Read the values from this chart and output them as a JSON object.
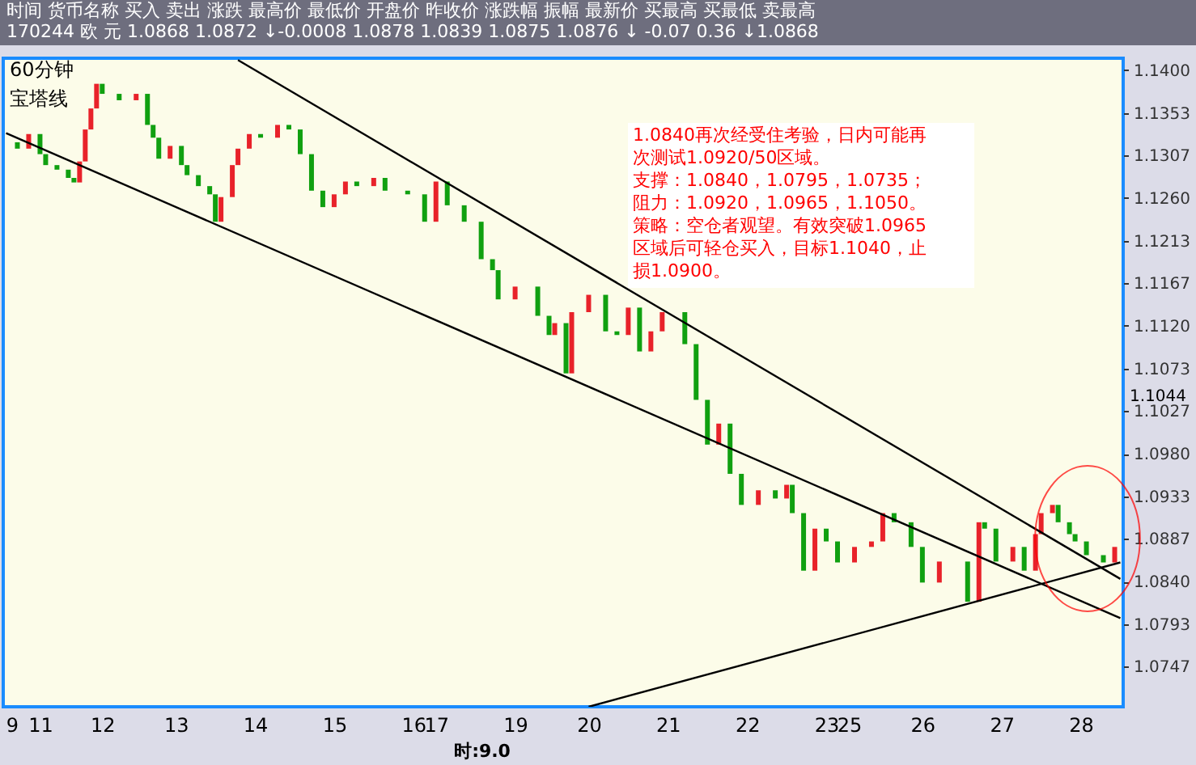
{
  "chart_data": {
    "type": "bar",
    "title": "60分钟",
    "subtitle": "宝塔线",
    "annotations": [
      "时间  货币名称  买入  卖出  涨跌  最高价  最低价  开盘价  昨收价  涨跌幅  振幅  最新价  买最高  买最低  卖最高",
      "170244  欧  元  1.0868  1.0872  ↓-0.0008  1.0878  1.0839  1.0875  1.0876  ↓ -0.07  0.36  ↓1.0868",
      "1.0840再次经受住考验，日内可能再",
      "次测试1.0920/50区域。",
      "支撑：1.0840，1.0795，1.0735；",
      "阻力：1.0920，1.0965，1.1050。",
      "策略：空仓者观望。有效突破1.0965",
      "区域后可轻仓买入，目标1.1040，止",
      "损1.0900。",
      "时:9.0",
      "1.1044"
    ],
    "categories": [
      null,
      "9",
      null,
      null,
      null,
      null,
      "11",
      null,
      null,
      null,
      null,
      null,
      null,
      null,
      null,
      null,
      null,
      "12",
      null,
      null,
      null,
      null,
      null,
      null,
      null,
      null,
      null,
      null,
      null,
      null,
      "13",
      null,
      null,
      null,
      null,
      null,
      null,
      null,
      null,
      null,
      null,
      null,
      null,
      null,
      "14",
      null,
      null,
      null,
      null,
      null,
      null,
      null,
      null,
      null,
      null,
      null,
      null,
      null,
      "15",
      null,
      null,
      null,
      null,
      null,
      null,
      null,
      null,
      null,
      null,
      null,
      null,
      null,
      "16",
      null,
      null,
      null,
      "17",
      null,
      null,
      null,
      null,
      null,
      null,
      null,
      null,
      null,
      null,
      null,
      null,
      null,
      "19",
      null,
      null,
      null,
      null,
      null,
      null,
      null,
      null,
      null,
      null,
      null,
      null,
      "20",
      null,
      null,
      null,
      null,
      null,
      null,
      null,
      null,
      null,
      null,
      null,
      null,
      null,
      "21",
      null,
      null,
      null,
      null,
      null,
      null,
      null,
      null,
      null,
      null,
      null,
      null,
      null,
      "22",
      null,
      null,
      null,
      null,
      null,
      null,
      null,
      null,
      null,
      null,
      null,
      null,
      null,
      "23",
      null,
      null,
      null,
      "25",
      null,
      null,
      null,
      null,
      null,
      null,
      null,
      null,
      null,
      null,
      null,
      null,
      "26",
      null,
      null,
      null,
      null,
      null,
      null,
      null,
      null,
      null,
      null,
      null,
      null,
      null,
      "27",
      null,
      null,
      null,
      null,
      null,
      null,
      null,
      null,
      null,
      null,
      null,
      null,
      null,
      "28",
      null,
      null,
      null,
      null,
      null,
      null,
      null
    ],
    "ylim": [
      1.0703,
      1.1413
    ],
    "yticks": [
      {
        "value": 1.14,
        "label": "1.1400"
      },
      {
        "value": 1.1353,
        "label": "1.1353"
      },
      {
        "value": 1.1307,
        "label": "1.1307"
      },
      {
        "value": 1.126,
        "label": "1.1260"
      },
      {
        "value": 1.1213,
        "label": "1.1213"
      },
      {
        "value": 1.1167,
        "label": "1.1167"
      },
      {
        "value": 1.112,
        "label": "1.1120"
      },
      {
        "value": 1.1073,
        "label": "1.1073"
      },
      {
        "value": 1.1027,
        "label": "1.1027"
      },
      {
        "value": 1.098,
        "label": "1.0980"
      },
      {
        "value": 1.0933,
        "label": "1.0933"
      },
      {
        "value": 1.0887,
        "label": "1.0887"
      },
      {
        "value": 1.084,
        "label": "1.0840"
      },
      {
        "value": 1.0793,
        "label": "1.0793"
      },
      {
        "value": 1.0747,
        "label": "1.0747"
      }
    ],
    "series": [
      {
        "values": [
          null,
          null,
          -0.0007,
          null,
          0.0016,
          null,
          -0.0022,
          -0.0012,
          null,
          -0.0005,
          null,
          -0.0009,
          -0.0005,
          0.0023,
          0.0035,
          0.0023,
          0.0027,
          -0.0011,
          null,
          null,
          -0.0007,
          null,
          null,
          0.0007,
          null,
          -0.0034,
          -0.0014,
          -0.0023,
          null,
          0.0014,
          null,
          -0.0021,
          -0.0011,
          null,
          -0.0012,
          null,
          -0.0009,
          -0.003,
          0.0027,
          null,
          0.0035,
          0.0018,
          null,
          0.0016,
          null,
          -0.0004,
          null,
          null,
          0.0014,
          null,
          -0.0005,
          null,
          -0.0027,
          null,
          -0.004,
          null,
          -0.0018,
          null,
          0.0014,
          null,
          0.0014,
          null,
          -0.0005,
          null,
          null,
          0.0009,
          null,
          -0.0014,
          null,
          null,
          null,
          -0.0004,
          null,
          null,
          -0.003,
          null,
          0.0044,
          null,
          -0.0026,
          null,
          null,
          -0.0018,
          null,
          null,
          -0.0041,
          null,
          -0.0012,
          -0.0032,
          null,
          null,
          0.0014,
          null,
          null,
          null,
          -0.0032,
          null,
          -0.0021,
          0.0013,
          null,
          -0.0055,
          0.0067,
          null,
          null,
          0.0019,
          null,
          null,
          -0.004,
          null,
          -0.0004,
          null,
          0.003,
          null,
          -0.0048,
          null,
          0.0022,
          null,
          0.0021,
          null,
          null,
          null,
          -0.0035,
          null,
          -0.0061,
          null,
          -0.0049,
          null,
          0.0023,
          null,
          -0.0055,
          null,
          -0.0034,
          null,
          null,
          0.0016,
          null,
          null,
          -0.0009,
          null,
          0.0015,
          -0.0031,
          null,
          -0.0063,
          null,
          0.0046,
          null,
          -0.0014,
          null,
          -0.0023,
          null,
          null,
          0.0017,
          null,
          null,
          0.0006,
          null,
          0.0031,
          null,
          -0.001,
          null,
          null,
          -0.0027,
          null,
          -0.0039,
          null,
          null,
          0.0023,
          null,
          null,
          null,
          null,
          -0.0044,
          null,
          0.0087,
          -0.0007,
          null,
          -0.0036,
          null,
          null,
          0.0016,
          null,
          -0.0026,
          null,
          0.004,
          0.0023,
          null,
          0.0009,
          -0.0019,
          null,
          -0.0013,
          -0.0008,
          null,
          -0.0015,
          null,
          null,
          -0.0008,
          null,
          0.0017,
          null
        ],
        "base": [
          null,
          null,
          1.1321,
          null,
          1.1314,
          null,
          1.133,
          1.1308,
          null,
          1.1296,
          null,
          1.1291,
          1.1282,
          1.1277,
          1.13,
          1.1335,
          1.1358,
          1.1385,
          null,
          null,
          1.1374,
          null,
          null,
          1.1367,
          null,
          1.1374,
          1.134,
          1.1326,
          null,
          1.1303,
          null,
          1.1317,
          1.1296,
          null,
          1.1285,
          null,
          1.1273,
          1.1264,
          1.1234,
          null,
          1.1261,
          1.1296,
          null,
          1.1314,
          null,
          1.133,
          null,
          null,
          1.1326,
          null,
          1.134,
          null,
          1.1335,
          null,
          1.1308,
          null,
          1.1268,
          null,
          1.125,
          null,
          1.1264,
          null,
          1.1278,
          null,
          null,
          1.1273,
          null,
          1.1282,
          null,
          null,
          null,
          1.1268,
          null,
          null,
          1.1264,
          null,
          1.1234,
          null,
          1.1278,
          null,
          null,
          1.1252,
          null,
          null,
          1.1234,
          null,
          1.1193,
          1.1181,
          null,
          null,
          1.1149,
          null,
          null,
          null,
          1.1163,
          null,
          1.1131,
          1.111,
          null,
          1.1123,
          1.1068,
          null,
          null,
          1.1135,
          null,
          null,
          1.1154,
          null,
          1.1114,
          null,
          1.111,
          null,
          1.114,
          null,
          1.1092,
          null,
          1.1114,
          null,
          null,
          null,
          1.1135,
          null,
          1.11,
          null,
          1.1039,
          null,
          1.099,
          null,
          1.1013,
          null,
          1.0958,
          null,
          null,
          1.0924,
          null,
          null,
          1.094,
          null,
          1.0931,
          1.0946,
          null,
          1.0915,
          null,
          1.0852,
          null,
          1.0898,
          null,
          1.0884,
          null,
          null,
          1.0861,
          null,
          null,
          1.0878,
          null,
          1.0884,
          null,
          1.0915,
          null,
          null,
          1.0905,
          null,
          1.0878,
          null,
          null,
          1.0839,
          null,
          null,
          null,
          null,
          1.0862,
          null,
          1.0818,
          1.0905,
          null,
          1.0898,
          null,
          null,
          1.0862,
          null,
          1.0878,
          null,
          1.0852,
          1.0892,
          null,
          1.0915,
          1.0924,
          null,
          1.0905,
          1.0892,
          null,
          1.0884,
          null,
          null,
          1.0869,
          null,
          1.0861,
          null
        ],
        "colors": [
          null,
          null,
          "#10a010",
          null,
          "#e8222a",
          null,
          "#10a010",
          "#10a010",
          null,
          "#10a010",
          null,
          "#10a010",
          "#10a010",
          "#e8222a",
          "#e8222a",
          "#e8222a",
          "#e8222a",
          "#10a010",
          null,
          null,
          "#10a010",
          null,
          null,
          "#e8222a",
          null,
          "#10a010",
          "#10a010",
          "#10a010",
          null,
          "#e8222a",
          null,
          "#10a010",
          "#10a010",
          null,
          "#10a010",
          null,
          "#10a010",
          "#10a010",
          "#e8222a",
          null,
          "#e8222a",
          "#e8222a",
          null,
          "#e8222a",
          null,
          "#10a010",
          null,
          null,
          "#e8222a",
          null,
          "#10a010",
          null,
          "#10a010",
          null,
          "#10a010",
          null,
          "#10a010",
          null,
          "#e8222a",
          null,
          "#e8222a",
          null,
          "#10a010",
          null,
          null,
          "#e8222a",
          null,
          "#10a010",
          null,
          null,
          null,
          "#10a010",
          null,
          null,
          "#10a010",
          null,
          "#e8222a",
          null,
          "#10a010",
          null,
          null,
          "#10a010",
          null,
          null,
          "#10a010",
          null,
          "#10a010",
          "#10a010",
          null,
          null,
          "#e8222a",
          null,
          null,
          null,
          "#10a010",
          null,
          "#10a010",
          "#e8222a",
          null,
          "#10a010",
          "#e8222a",
          null,
          null,
          "#e8222a",
          null,
          null,
          "#10a010",
          null,
          "#10a010",
          null,
          "#e8222a",
          null,
          "#10a010",
          null,
          "#e8222a",
          null,
          "#e8222a",
          null,
          null,
          null,
          "#10a010",
          null,
          "#10a010",
          null,
          "#10a010",
          null,
          "#e8222a",
          null,
          "#10a010",
          null,
          "#10a010",
          null,
          null,
          "#e8222a",
          null,
          null,
          "#10a010",
          null,
          "#e8222a",
          "#10a010",
          null,
          "#10a010",
          null,
          "#e8222a",
          null,
          "#10a010",
          null,
          "#10a010",
          null,
          null,
          "#e8222a",
          null,
          null,
          "#e8222a",
          null,
          "#e8222a",
          null,
          "#10a010",
          null,
          null,
          "#10a010",
          null,
          "#10a010",
          null,
          null,
          "#e8222a",
          null,
          null,
          null,
          null,
          "#10a010",
          null,
          "#e8222a",
          "#10a010",
          null,
          "#10a010",
          null,
          null,
          "#e8222a",
          null,
          "#10a010",
          null,
          "#e8222a",
          "#e8222a",
          null,
          "#e8222a",
          "#10a010",
          null,
          "#10a010",
          "#10a010",
          null,
          "#10a010",
          null,
          null,
          "#10a010",
          null,
          "#e8222a",
          null
        ]
      },
      {
        "type": "line",
        "color": "#000000",
        "values": [
          1.1331,
          null,
          null,
          null,
          null,
          null,
          null,
          null,
          null,
          null,
          null,
          null,
          null,
          null,
          null,
          null,
          null,
          null,
          null,
          null,
          null,
          null,
          null,
          null,
          null,
          null,
          null,
          null,
          null,
          null,
          null,
          null,
          null,
          null,
          null,
          null,
          null,
          null,
          null,
          null,
          null,
          null,
          null,
          null,
          null,
          null,
          null,
          null,
          null,
          null,
          null,
          null,
          null,
          null,
          null,
          null,
          null,
          null,
          null,
          null,
          null,
          null,
          null,
          null,
          null,
          null,
          null,
          null,
          null,
          null,
          null,
          null,
          null,
          null,
          null,
          null,
          null,
          null,
          null,
          null,
          null,
          null,
          null,
          null,
          null,
          null,
          null,
          null,
          null,
          null,
          null,
          null,
          null,
          null,
          null,
          null,
          null,
          null,
          null,
          null,
          null,
          null,
          null,
          null,
          null,
          null,
          null,
          null,
          null,
          null,
          null,
          null,
          null,
          null,
          null,
          null,
          null,
          null,
          null,
          null,
          null,
          null,
          null,
          null,
          null,
          null,
          null,
          null,
          null,
          null,
          null,
          null,
          null,
          null,
          null,
          null,
          null,
          null,
          null,
          null,
          null,
          null,
          null,
          null,
          null,
          null,
          null,
          null,
          null,
          null,
          null,
          null,
          null,
          null,
          null,
          null,
          null,
          null,
          null,
          null,
          null,
          null,
          null,
          null,
          null,
          null,
          null,
          null,
          null,
          null,
          null,
          null,
          null,
          null,
          null,
          null,
          null,
          null,
          null,
          null,
          null,
          null,
          null,
          null,
          null,
          null,
          null,
          null,
          null,
          null,
          null,
          null,
          null,
          null,
          null,
          null,
          null,
          1.08
        ]
      },
      {
        "type": "line",
        "color": "#000000",
        "values": [
          null,
          null,
          null,
          null,
          null,
          null,
          null,
          null,
          null,
          null,
          null,
          null,
          null,
          null,
          null,
          null,
          null,
          null,
          null,
          null,
          null,
          null,
          null,
          null,
          null,
          null,
          null,
          null,
          null,
          null,
          null,
          null,
          null,
          null,
          null,
          null,
          null,
          null,
          null,
          null,
          null,
          1.1411,
          null,
          null,
          null,
          null,
          null,
          null,
          null,
          null,
          null,
          null,
          null,
          null,
          null,
          null,
          null,
          null,
          null,
          null,
          null,
          null,
          null,
          null,
          null,
          null,
          null,
          null,
          null,
          null,
          null,
          null,
          null,
          null,
          null,
          null,
          null,
          null,
          null,
          null,
          null,
          null,
          null,
          null,
          null,
          null,
          null,
          null,
          null,
          null,
          null,
          null,
          null,
          null,
          null,
          null,
          null,
          null,
          null,
          null,
          null,
          null,
          null,
          null,
          null,
          null,
          null,
          null,
          null,
          null,
          null,
          null,
          null,
          null,
          null,
          null,
          null,
          null,
          null,
          null,
          null,
          null,
          null,
          null,
          null,
          null,
          null,
          null,
          null,
          null,
          null,
          null,
          null,
          null,
          null,
          null,
          null,
          null,
          null,
          null,
          null,
          null,
          null,
          null,
          null,
          null,
          null,
          null,
          null,
          null,
          null,
          null,
          null,
          null,
          null,
          null,
          null,
          null,
          null,
          null,
          null,
          null,
          null,
          null,
          null,
          null,
          null,
          null,
          null,
          null,
          null,
          null,
          null,
          null,
          null,
          null,
          null,
          null,
          null,
          null,
          null,
          null,
          null,
          null,
          null,
          null,
          null,
          null,
          null,
          null,
          null,
          null,
          null,
          null,
          null,
          null,
          null,
          1.0843
        ]
      },
      {
        "type": "line",
        "color": "#000000",
        "values": [
          null,
          null,
          null,
          null,
          null,
          null,
          null,
          null,
          null,
          null,
          null,
          null,
          null,
          null,
          null,
          null,
          null,
          null,
          null,
          null,
          null,
          null,
          null,
          null,
          null,
          null,
          null,
          null,
          null,
          null,
          null,
          null,
          null,
          null,
          null,
          null,
          null,
          null,
          null,
          null,
          null,
          null,
          null,
          null,
          null,
          null,
          null,
          null,
          null,
          null,
          null,
          null,
          null,
          null,
          null,
          null,
          null,
          null,
          null,
          null,
          null,
          null,
          null,
          null,
          null,
          null,
          null,
          null,
          null,
          null,
          null,
          null,
          null,
          null,
          null,
          null,
          null,
          null,
          null,
          null,
          null,
          null,
          null,
          null,
          null,
          null,
          null,
          null,
          null,
          null,
          null,
          null,
          null,
          null,
          null,
          null,
          null,
          null,
          null,
          null,
          null,
          null,
          null,
          1.0703,
          null,
          null,
          null,
          null,
          null,
          null,
          null,
          null,
          null,
          null,
          null,
          null,
          null,
          null,
          null,
          null,
          null,
          null,
          null,
          null,
          null,
          null,
          null,
          null,
          null,
          null,
          null,
          null,
          null,
          null,
          null,
          null,
          null,
          null,
          null,
          null,
          null,
          null,
          null,
          null,
          null,
          null,
          null,
          null,
          null,
          null,
          null,
          null,
          null,
          null,
          null,
          null,
          null,
          null,
          null,
          null,
          null,
          null,
          null,
          null,
          null,
          null,
          null,
          null,
          null,
          null,
          null,
          null,
          null,
          null,
          null,
          null,
          null,
          null,
          null,
          null,
          null,
          null,
          null,
          null,
          null,
          null,
          null,
          null,
          null,
          null,
          null,
          null,
          null,
          null,
          null,
          null,
          null,
          1.0861
        ]
      }
    ]
  }
}
